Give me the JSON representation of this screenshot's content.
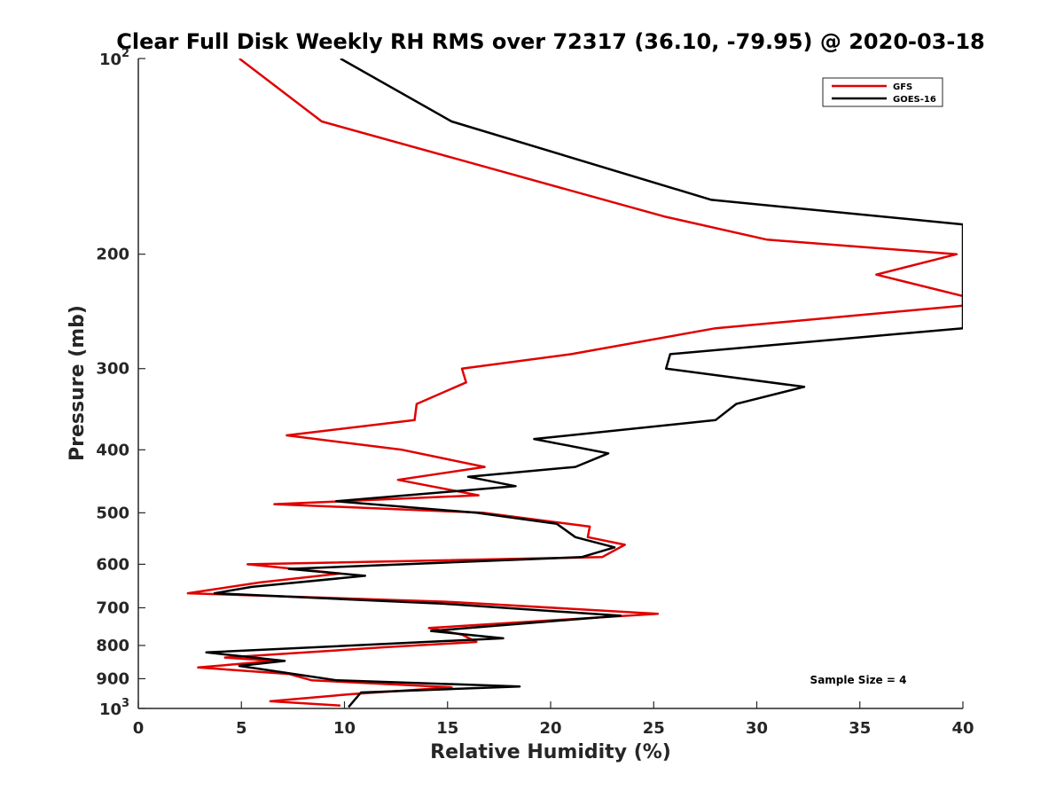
{
  "chart_data": {
    "type": "line",
    "title": "Clear Full Disk Weekly RH RMS over 72317 (36.10, -79.95) @ 2020-03-18",
    "xlabel": "Relative Humidity (%)",
    "ylabel": "Pressure (mb)",
    "xlim": [
      0,
      40
    ],
    "ylim": [
      100,
      1000
    ],
    "y_scale": "log",
    "y_reversed": true,
    "x_ticks": [
      "0",
      "5",
      "10",
      "15",
      "20",
      "25",
      "30",
      "35",
      "40"
    ],
    "y_ticks": [
      {
        "value": 100,
        "base": "10",
        "sup": "2"
      },
      {
        "value": 200,
        "label": "200"
      },
      {
        "value": 300,
        "label": "300"
      },
      {
        "value": 400,
        "label": "400"
      },
      {
        "value": 500,
        "label": "500"
      },
      {
        "value": 600,
        "label": "600"
      },
      {
        "value": 700,
        "label": "700"
      },
      {
        "value": 800,
        "label": "800"
      },
      {
        "value": 900,
        "label": "900"
      },
      {
        "value": 1000,
        "base": "10",
        "sup": "3"
      }
    ],
    "grid": false,
    "legend_position": "top-right",
    "annotation": "Sample Size = 4",
    "series": [
      {
        "name": "GFS",
        "color": "#e00000",
        "points": [
          [
            4.9,
            100
          ],
          [
            8.9,
            125
          ],
          [
            25.5,
            175
          ],
          [
            30.5,
            190
          ],
          [
            39.7,
            200
          ],
          [
            35.8,
            215
          ],
          [
            40,
            232
          ],
          [
            40,
            240
          ],
          [
            28,
            260
          ],
          [
            21,
            285
          ],
          [
            15.7,
            300
          ],
          [
            15.9,
            315
          ],
          [
            13.5,
            340
          ],
          [
            13.4,
            360
          ],
          [
            7.2,
            380
          ],
          [
            12.8,
            400
          ],
          [
            16.8,
            425
          ],
          [
            12.6,
            445
          ],
          [
            16.5,
            470
          ],
          [
            6.6,
            485
          ],
          [
            16.7,
            500
          ],
          [
            21.9,
            525
          ],
          [
            21.8,
            545
          ],
          [
            23.6,
            560
          ],
          [
            22.5,
            585
          ],
          [
            5.3,
            600
          ],
          [
            9.8,
            620
          ],
          [
            5.9,
            640
          ],
          [
            2.4,
            665
          ],
          [
            14.9,
            685
          ],
          [
            25.2,
            715
          ],
          [
            14.1,
            752
          ],
          [
            15.7,
            770
          ],
          [
            16.4,
            790
          ],
          [
            12,
            805
          ],
          [
            4.2,
            835
          ],
          [
            6.6,
            845
          ],
          [
            2.9,
            865
          ],
          [
            7.3,
            885
          ],
          [
            8.4,
            905
          ],
          [
            15.2,
            928
          ],
          [
            10.4,
            950
          ],
          [
            6.4,
            975
          ],
          [
            9.8,
            990
          ]
        ]
      },
      {
        "name": "GOES-16",
        "color": "#000000",
        "points": [
          [
            9.8,
            100
          ],
          [
            15.2,
            125
          ],
          [
            27.8,
            165
          ],
          [
            40,
            180
          ],
          [
            40,
            260
          ],
          [
            25.8,
            285
          ],
          [
            25.6,
            300
          ],
          [
            32.3,
            320
          ],
          [
            29,
            340
          ],
          [
            28,
            360
          ],
          [
            19.2,
            385
          ],
          [
            22.8,
            405
          ],
          [
            21.2,
            425
          ],
          [
            16,
            440
          ],
          [
            18.3,
            455
          ],
          [
            9.6,
            480
          ],
          [
            16.4,
            500
          ],
          [
            20.3,
            520
          ],
          [
            21.2,
            545
          ],
          [
            23.1,
            565
          ],
          [
            21.5,
            585
          ],
          [
            7.3,
            610
          ],
          [
            11,
            625
          ],
          [
            5.5,
            650
          ],
          [
            3.7,
            665
          ],
          [
            14.8,
            690
          ],
          [
            23.4,
            720
          ],
          [
            14.2,
            760
          ],
          [
            17.7,
            780
          ],
          [
            3.3,
            820
          ],
          [
            7.1,
            845
          ],
          [
            4.9,
            860
          ],
          [
            9.6,
            905
          ],
          [
            18.5,
            925
          ],
          [
            10.8,
            945
          ],
          [
            10.2,
            995
          ]
        ]
      }
    ]
  }
}
